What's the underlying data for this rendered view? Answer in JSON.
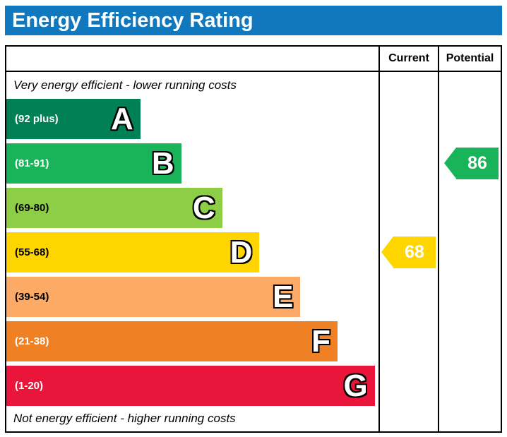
{
  "title": "Energy Efficiency Rating",
  "colors": {
    "title_bar": "#1278be",
    "title_text": "#ffffff",
    "border": "#000000"
  },
  "columns": [
    {
      "label": "Current"
    },
    {
      "label": "Potential"
    }
  ],
  "notes": {
    "top": "Very energy efficient - lower running costs",
    "bottom": "Not energy efficient - higher running costs"
  },
  "chart_data": {
    "type": "bar",
    "title": "Energy Efficiency Rating",
    "bands": [
      {
        "letter": "A",
        "range_label": "(92 plus)",
        "color": "#008054",
        "label_color": "#ffffff",
        "width_pct": 36
      },
      {
        "letter": "B",
        "range_label": "(81-91)",
        "color": "#19b459",
        "label_color": "#ffffff",
        "width_pct": 47
      },
      {
        "letter": "C",
        "range_label": "(69-80)",
        "color": "#8dce46",
        "label_color": "#000000",
        "width_pct": 58
      },
      {
        "letter": "D",
        "range_label": "(55-68)",
        "color": "#ffd500",
        "label_color": "#000000",
        "width_pct": 68
      },
      {
        "letter": "E",
        "range_label": "(39-54)",
        "color": "#fcaa65",
        "label_color": "#000000",
        "width_pct": 79
      },
      {
        "letter": "F",
        "range_label": "(21-38)",
        "color": "#ef8023",
        "label_color": "#ffffff",
        "width_pct": 89
      },
      {
        "letter": "G",
        "range_label": "(1-20)",
        "color": "#e9153b",
        "label_color": "#ffffff",
        "width_pct": 99
      }
    ],
    "markers": [
      {
        "column": "current",
        "value": 68,
        "band": "D",
        "band_index": 3,
        "color": "#ffd500"
      },
      {
        "column": "potential",
        "value": 86,
        "band": "B",
        "band_index": 1,
        "color": "#19b459"
      }
    ]
  }
}
